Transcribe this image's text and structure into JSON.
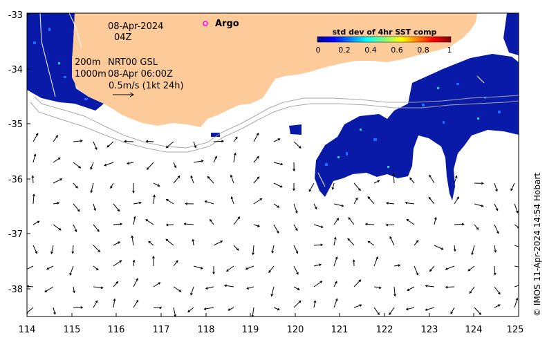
{
  "map": {
    "lon_ticks": [
      "114",
      "115",
      "116",
      "117",
      "118",
      "119",
      "120",
      "121",
      "122",
      "123",
      "124",
      "125"
    ],
    "lat_ticks": [
      "-33",
      "-34",
      "-35",
      "-36",
      "-37",
      "-38"
    ],
    "land_color": "#fdca9a",
    "ocean_color": "#ffffff"
  },
  "annotations": {
    "date": "08-Apr-2024",
    "time": "04Z",
    "depth1": "200m",
    "depth2": "1000m",
    "product": "NRT00 GSL",
    "product_time": "08-Apr 06:00Z",
    "scale": "0.5m/s (1kt 24h)",
    "argo_label": "Argo",
    "argo_marker_color": "#ff00ff"
  },
  "colorbar": {
    "title": "std dev of 4hr SST comp",
    "ticks": [
      "0",
      "0.2",
      "0.4",
      "0.6",
      "0.8",
      "1"
    ],
    "colormap": "jet"
  },
  "credit": "© IMOS 11-Apr-2024 14:54 Hobart"
}
